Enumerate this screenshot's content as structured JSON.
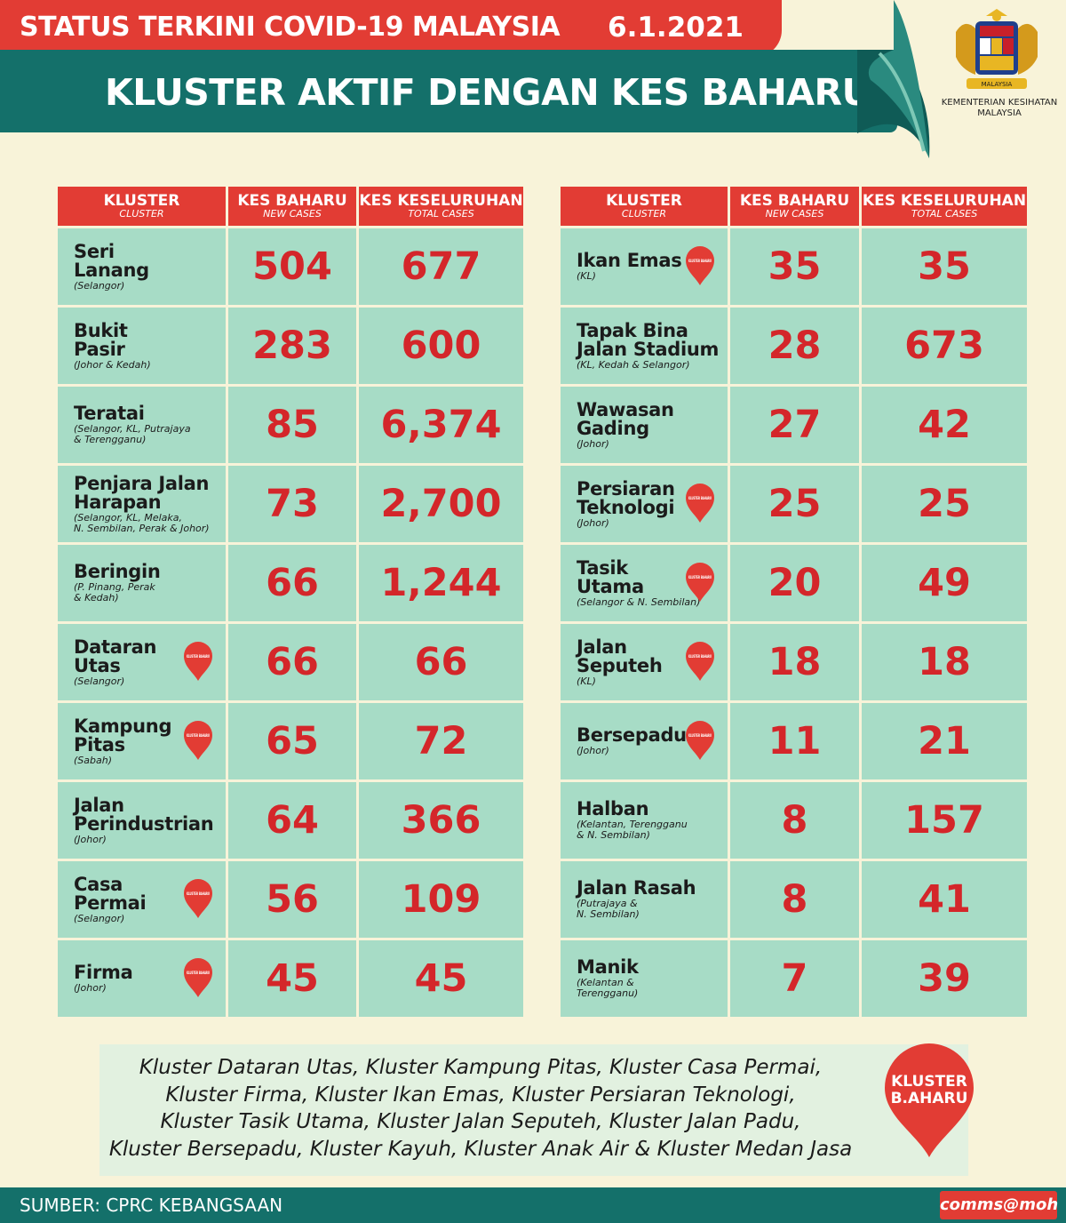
{
  "header": {
    "status_title": "STATUS TERKINI COVID-19 MALAYSIA",
    "date": "6.1.2021",
    "main_title": "KLUSTER AKTIF DENGAN KES BAHARU",
    "ministry": "KEMENTERIAN KESIHATAN MALAYSIA",
    "crest_text": "MALAYSIA"
  },
  "columns": {
    "cluster": "KLUSTER",
    "cluster_en": "CLUSTER",
    "new_cases": "KES BAHARU",
    "new_cases_en": "NEW CASES",
    "total_cases": "KES KESELURUHAN",
    "total_cases_en": "TOTAL CASES"
  },
  "pin_label": "KLUSTER BAHARU",
  "left_rows": [
    {
      "name": "Seri\nLanang",
      "region": "(Selangor)",
      "new_cases": "504",
      "total_cases": "677",
      "is_new": false
    },
    {
      "name": "Bukit\nPasir",
      "region": "(Johor & Kedah)",
      "new_cases": "283",
      "total_cases": "600",
      "is_new": false
    },
    {
      "name": "Teratai",
      "region": "(Selangor, KL, Putrajaya\n& Terengganu)",
      "new_cases": "85",
      "total_cases": "6,374",
      "is_new": false
    },
    {
      "name": "Penjara Jalan\nHarapan",
      "region": "(Selangor, KL, Melaka,\nN. Sembilan, Perak & Johor)",
      "new_cases": "73",
      "total_cases": "2,700",
      "is_new": false
    },
    {
      "name": "Beringin",
      "region": "(P. Pinang, Perak\n& Kedah)",
      "new_cases": "66",
      "total_cases": "1,244",
      "is_new": false
    },
    {
      "name": "Dataran\nUtas",
      "region": "(Selangor)",
      "new_cases": "66",
      "total_cases": "66",
      "is_new": true
    },
    {
      "name": "Kampung\nPitas",
      "region": "(Sabah)",
      "new_cases": "65",
      "total_cases": "72",
      "is_new": true
    },
    {
      "name": "Jalan\nPerindustrian",
      "region": "(Johor)",
      "new_cases": "64",
      "total_cases": "366",
      "is_new": false
    },
    {
      "name": "Casa\nPermai",
      "region": "(Selangor)",
      "new_cases": "56",
      "total_cases": "109",
      "is_new": true
    },
    {
      "name": "Firma",
      "region": "(Johor)",
      "new_cases": "45",
      "total_cases": "45",
      "is_new": true
    }
  ],
  "right_rows": [
    {
      "name": "Ikan Emas",
      "region": "(KL)",
      "new_cases": "35",
      "total_cases": "35",
      "is_new": true
    },
    {
      "name": "Tapak Bina\nJalan Stadium",
      "region": "(KL, Kedah & Selangor)",
      "new_cases": "28",
      "total_cases": "673",
      "is_new": false
    },
    {
      "name": "Wawasan\nGading",
      "region": "(Johor)",
      "new_cases": "27",
      "total_cases": "42",
      "is_new": false
    },
    {
      "name": "Persiaran\nTeknologi",
      "region": "(Johor)",
      "new_cases": "25",
      "total_cases": "25",
      "is_new": true
    },
    {
      "name": "Tasik\nUtama",
      "region": "(Selangor & N. Sembilan)",
      "new_cases": "20",
      "total_cases": "49",
      "is_new": true
    },
    {
      "name": "Jalan\nSeputeh",
      "region": "(KL)",
      "new_cases": "18",
      "total_cases": "18",
      "is_new": true
    },
    {
      "name": "Bersepadu",
      "region": "(Johor)",
      "new_cases": "11",
      "total_cases": "21",
      "is_new": true
    },
    {
      "name": "Halban",
      "region": "(Kelantan, Terengganu\n& N. Sembilan)",
      "new_cases": "8",
      "total_cases": "157",
      "is_new": false
    },
    {
      "name": "Jalan Rasah",
      "region": "(Putrajaya &\nN. Sembilan)",
      "new_cases": "8",
      "total_cases": "41",
      "is_new": false
    },
    {
      "name": "Manik",
      "region": "(Kelantan &\nTerengganu)",
      "new_cases": "7",
      "total_cases": "39",
      "is_new": false
    }
  ],
  "note_lines": [
    "Kluster Dataran Utas, Kluster Kampung Pitas, Kluster Casa Permai,",
    "Kluster Firma, Kluster Ikan Emas, Kluster Persiaran Teknologi,",
    "Kluster Tasik Utama, Kluster Jalan Seputeh, Kluster Jalan Padu,",
    "Kluster Bersepadu, Kluster Kayuh, Kluster Anak Air & Kluster Medan Jasa"
  ],
  "big_pin": {
    "line1": "KLUSTER",
    "line2": "B.AHARU"
  },
  "footer": {
    "source": "SUMBER: CPRC KEBANGSAAN",
    "brand": "comms@moh"
  },
  "colors": {
    "red": "#e23c34",
    "teal": "#14706a",
    "cell": "#a7dcc6",
    "background": "#f8f3d9",
    "number": "#d4262a"
  }
}
